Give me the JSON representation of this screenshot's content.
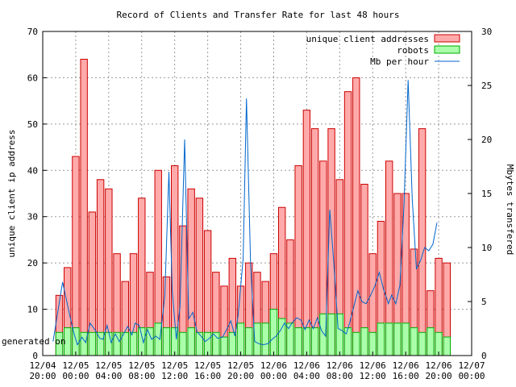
{
  "chart_data": {
    "type": "bar",
    "title": "Record of Clients and Transfer Rate for last 48 hours",
    "ylabel": "unique client ip address",
    "y2label": "Mbytes transfered",
    "ylim": [
      0,
      70
    ],
    "y2lim": [
      0,
      30
    ],
    "yticks": [
      0,
      10,
      20,
      30,
      40,
      50,
      60,
      70
    ],
    "y2ticks": [
      0,
      5,
      10,
      15,
      20,
      25,
      30
    ],
    "grid": true,
    "legend_position": "top-right",
    "xlim": [
      0,
      96
    ],
    "xticks": [
      {
        "at": 0,
        "date": "12/04",
        "time": "20:00"
      },
      {
        "at": 8,
        "date": "12/05",
        "time": "00:00"
      },
      {
        "at": 16,
        "date": "12/05",
        "time": "04:00"
      },
      {
        "at": 24,
        "date": "12/05",
        "time": "08:00"
      },
      {
        "at": 32,
        "date": "12/05",
        "time": "12:00"
      },
      {
        "at": 40,
        "date": "12/05",
        "time": "16:00"
      },
      {
        "at": 48,
        "date": "12/05",
        "time": "20:00"
      },
      {
        "at": 56,
        "date": "12/06",
        "time": "00:00"
      },
      {
        "at": 64,
        "date": "12/06",
        "time": "04:00"
      },
      {
        "at": 72,
        "date": "12/06",
        "time": "08:00"
      },
      {
        "at": 80,
        "date": "12/06",
        "time": "12:00"
      },
      {
        "at": 88,
        "date": "12/06",
        "time": "16:00"
      },
      {
        "at": 96,
        "date": "12/06",
        "time": "20:00"
      },
      {
        "at": 104,
        "date": "12/07",
        "time": "00:00"
      }
    ],
    "series": [
      {
        "name": "unique client addresses",
        "color": "#ffaaaa",
        "values": [
          13,
          19,
          43,
          64,
          31,
          38,
          36,
          22,
          16,
          22,
          34,
          18,
          40,
          17,
          41,
          28,
          36,
          34,
          27,
          18,
          15,
          21,
          15,
          20,
          18,
          16,
          22,
          32,
          25,
          41,
          53,
          49,
          42,
          49,
          38,
          57,
          60,
          37,
          22,
          29,
          42,
          35,
          35,
          23,
          49,
          14,
          21,
          20
        ]
      },
      {
        "name": "robots",
        "color": "#aaffaa",
        "values": [
          5,
          6,
          6,
          5,
          5,
          5,
          5,
          5,
          5,
          5,
          6,
          6,
          7,
          6,
          6,
          5,
          6,
          5,
          5,
          5,
          4,
          5,
          7,
          6,
          7,
          7,
          10,
          8,
          7,
          6,
          6,
          6,
          9,
          9,
          9,
          6,
          5,
          6,
          5,
          7,
          7,
          7,
          7,
          6,
          5,
          6,
          5,
          4
        ]
      },
      {
        "name": "Mb per hour",
        "color": "#0066cc",
        "x": [
          2.5,
          4.8,
          6.4,
          7.6,
          8.4,
          9.5,
          10.4,
          11.5,
          12.8,
          13.8,
          14.6,
          15.6,
          16.6,
          17.6,
          18.6,
          19.6,
          20.6,
          21.6,
          22.4,
          23.4,
          24.4,
          25.4,
          26.4,
          27.4,
          28.4,
          29.6,
          30.6,
          31.4,
          32.4,
          33.3,
          34.4,
          35.4,
          36.4,
          37.4,
          38.4,
          39.4,
          40.4,
          41.4,
          42.4,
          43.6,
          44.6,
          45.6,
          46.6,
          47.4,
          48.6,
          49.4,
          50.4,
          51.4,
          52.4,
          53.4,
          54.6,
          55.6,
          56.6,
          57.6,
          58.6,
          59.6,
          60.6,
          61.6,
          62.6,
          63.6,
          64.6,
          65.6,
          66.6,
          67.6,
          68.6,
          69.6,
          70.6,
          71.6,
          72.6,
          73.6,
          74.4,
          75.4,
          76.4,
          77.4,
          78.4,
          79.4,
          80.6,
          81.6,
          82.6,
          83.8,
          84.6,
          85.6,
          86.6,
          87.6,
          88.6,
          89.6,
          90.6,
          91.6,
          92.6,
          93.6,
          94.6,
          95.6
        ],
        "values": [
          1.3,
          6.8,
          4.0,
          2.0,
          1.0,
          1.7,
          1.2,
          3.0,
          2.3,
          1.6,
          1.5,
          2.8,
          1.2,
          2.0,
          1.3,
          2.0,
          2.7,
          1.9,
          3.0,
          2.8,
          1.2,
          2.4,
          1.5,
          1.8,
          1.5,
          5.5,
          17.0,
          6.0,
          1.5,
          4.5,
          20.0,
          3.4,
          4.0,
          2.2,
          1.8,
          1.3,
          1.6,
          2.0,
          1.6,
          1.7,
          2.4,
          3.2,
          1.8,
          3.8,
          9.0,
          23.8,
          8.5,
          1.3,
          1.1,
          1.0,
          1.1,
          1.5,
          1.8,
          2.3,
          3.0,
          2.5,
          3.1,
          3.5,
          3.3,
          2.4,
          3.3,
          2.5,
          3.5,
          2.3,
          1.8,
          13.5,
          8.5,
          2.5,
          2.3,
          2.0,
          3.0,
          4.5,
          6.0,
          5.0,
          4.8,
          5.5,
          6.5,
          7.7,
          6.2,
          4.8,
          5.6,
          4.8,
          6.5,
          14.0,
          25.5,
          14.5,
          8.0,
          8.8,
          10.0,
          9.7,
          10.3,
          12.3
        ]
      }
    ]
  },
  "footer_text": "generated on"
}
